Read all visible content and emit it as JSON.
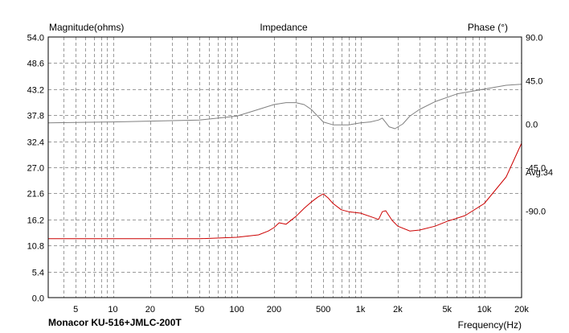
{
  "chart_data": {
    "type": "line",
    "title": "Impedance",
    "ylabel_left": "Magnitude(ohms)",
    "ylabel_right": "Phase (°)",
    "xlabel": "Frequency(Hz)",
    "caption": "Monacor KU-516+JMLC-200T",
    "annotation": "Avg:34",
    "x_scale": "log",
    "xlim": [
      3,
      20000
    ],
    "ylim_left": [
      0,
      54
    ],
    "ylim_right": [
      -180,
      90
    ],
    "grid": true,
    "x_ticks": [
      {
        "v": 5,
        "label": "5"
      },
      {
        "v": 10,
        "label": "10"
      },
      {
        "v": 20,
        "label": "20"
      },
      {
        "v": 50,
        "label": "50"
      },
      {
        "v": 100,
        "label": "100"
      },
      {
        "v": 200,
        "label": "200"
      },
      {
        "v": 500,
        "label": "500"
      },
      {
        "v": 1000,
        "label": "1k"
      },
      {
        "v": 2000,
        "label": "2k"
      },
      {
        "v": 5000,
        "label": "5k"
      },
      {
        "v": 10000,
        "label": "10k"
      },
      {
        "v": 20000,
        "label": "20k"
      }
    ],
    "y_ticks_left": [
      "0.0",
      "5.4",
      "10.8",
      "16.2",
      "21.6",
      "27.0",
      "32.4",
      "37.8",
      "43.2",
      "48.6",
      "54.0"
    ],
    "y_ticks_right": [
      "90.0",
      "45.0",
      "0.0",
      "-45.0",
      "-90.0"
    ],
    "colors": {
      "magnitude": "#cc0000",
      "phase": "#808080",
      "grid": "#9a9a9a"
    },
    "series": [
      {
        "name": "Magnitude",
        "axis": "left",
        "x": [
          3,
          10,
          50,
          100,
          150,
          180,
          200,
          220,
          250,
          280,
          300,
          350,
          400,
          450,
          500,
          550,
          600,
          700,
          800,
          1000,
          1200,
          1400,
          1500,
          1600,
          1800,
          2000,
          2500,
          3000,
          4000,
          5000,
          7000,
          10000,
          15000,
          20000
        ],
        "y": [
          12.2,
          12.2,
          12.2,
          12.5,
          13.0,
          13.8,
          14.5,
          15.5,
          15.2,
          16.2,
          16.8,
          18.5,
          19.8,
          20.8,
          21.5,
          20.6,
          19.5,
          18.2,
          17.8,
          17.5,
          16.8,
          16.2,
          17.8,
          18.0,
          16.0,
          14.8,
          13.8,
          14.0,
          14.8,
          15.8,
          17.0,
          19.5,
          25.0,
          32.0
        ]
      },
      {
        "name": "Phase",
        "axis": "right",
        "x": [
          3,
          10,
          50,
          100,
          150,
          200,
          250,
          300,
          350,
          400,
          500,
          600,
          800,
          1000,
          1200,
          1400,
          1500,
          1700,
          1900,
          2200,
          2500,
          3000,
          4000,
          6000,
          10000,
          15000,
          20000
        ],
        "y": [
          1,
          2,
          4,
          8,
          15,
          20,
          22,
          22,
          20,
          15,
          2,
          -1,
          -1,
          1,
          2,
          4,
          6,
          -3,
          -5,
          0,
          8,
          15,
          23,
          31,
          36,
          40,
          41
        ]
      }
    ]
  }
}
